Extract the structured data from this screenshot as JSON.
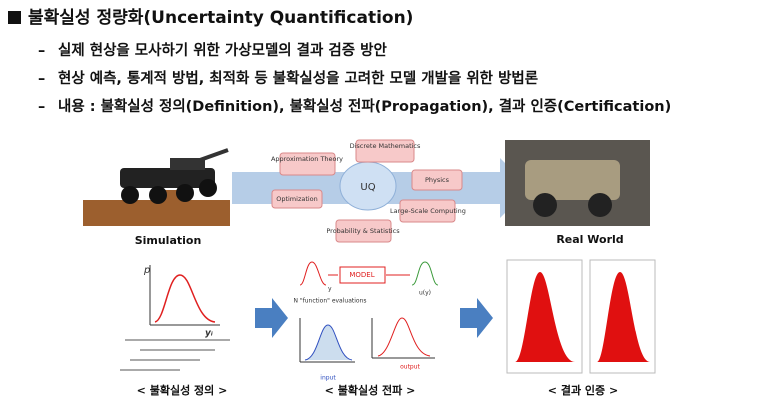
{
  "header": {
    "title": "불확실성 정량화(Uncertainty Quantification)"
  },
  "bullets": [
    "실제 현상을 모사하기 위한 가상모델의 결과 검증 방안",
    "현상 예측, 통계적 방법, 최적화 등 불확실성을 고려한 모델 개발을 위한 방법론",
    "내용 : 불확실성 정의(Definition), 불확실성 전파(Propagation), 결과 인증(Certification)"
  ],
  "diagram": {
    "nodes": [
      "Approximation Theory",
      "Discrete Mathematics",
      "Physics",
      "Optimization",
      "UQ",
      "Large-Scale Computing",
      "Probability & Statistics"
    ],
    "left_label": "Simulation",
    "right_label": "Real World"
  },
  "steps": {
    "definition": {
      "caption": "< 불확실성 정의 >",
      "p": "p",
      "y": "yᵢ"
    },
    "propagation": {
      "caption": "< 불확실성 전파 >",
      "model": "MODEL",
      "uy": "u(y)",
      "y": "y",
      "evals": "N \"function\" evaluations",
      "input": "input",
      "output": "output"
    },
    "certification": {
      "caption": "< 결과 인증 >"
    }
  }
}
